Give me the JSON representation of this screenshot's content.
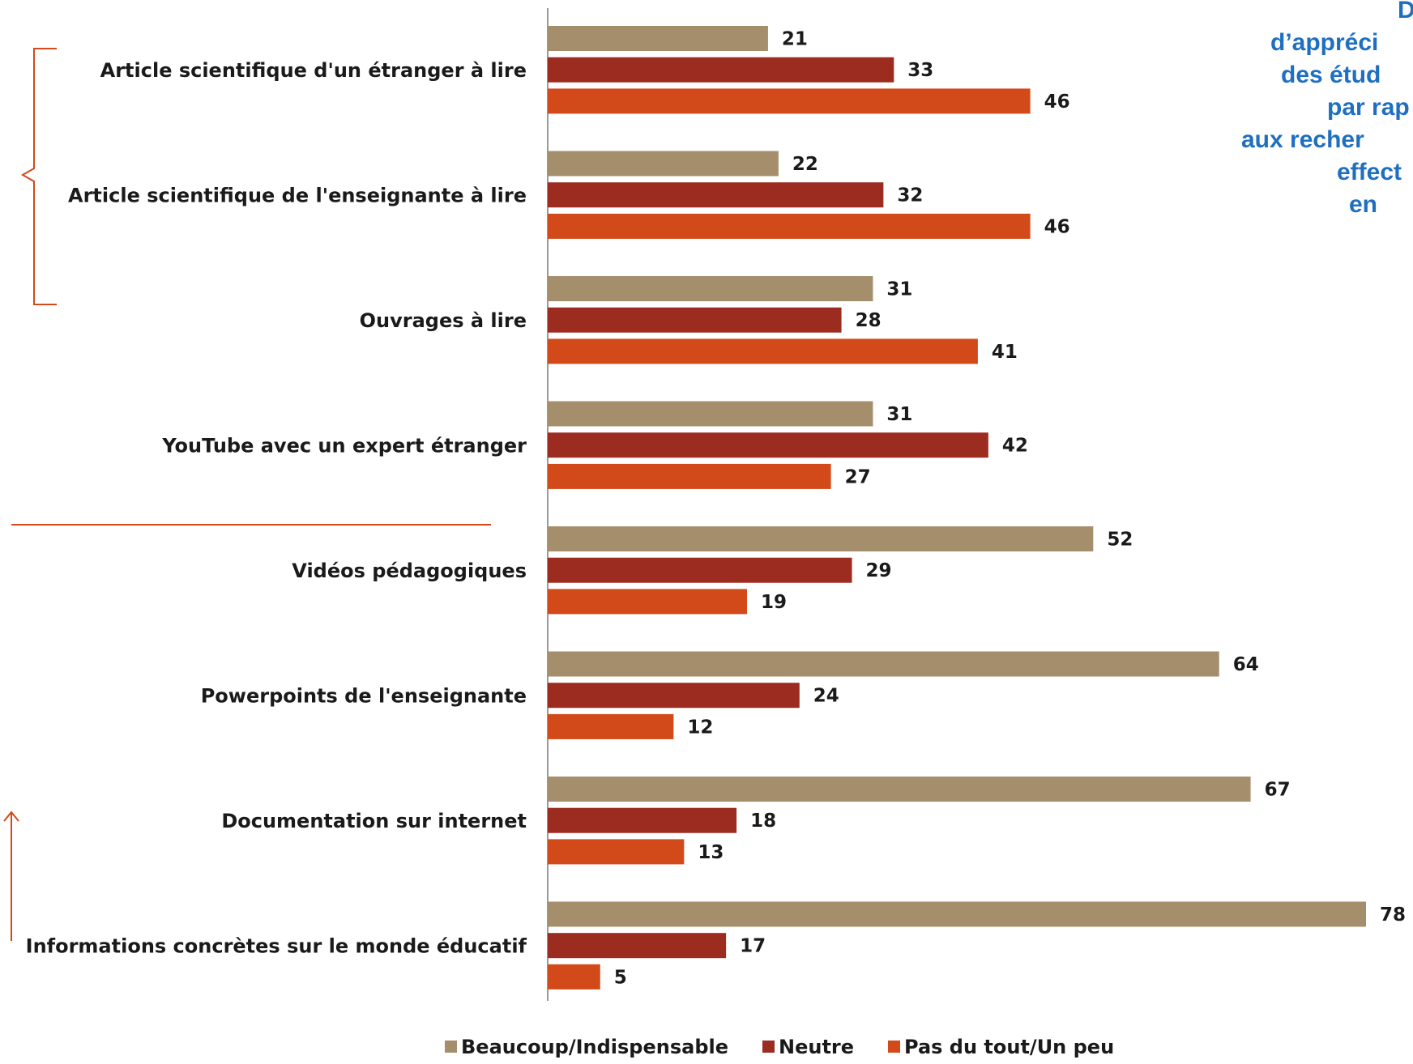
{
  "chart_data": {
    "type": "bar",
    "orientation": "horizontal",
    "categories": [
      "Article scientifique d'un étranger à lire",
      "Article scientifique de l'enseignante à lire",
      "Ouvrages à lire",
      "YouTube avec un expert étranger",
      "Vidéos pédagogiques",
      "Powerpoints de l'enseignante",
      "Documentation sur internet",
      "Informations concrètes sur le  monde éducatif"
    ],
    "series": [
      {
        "name": "Beaucoup/Indispensable",
        "color": "#A58E6C",
        "values": [
          21,
          22,
          31,
          31,
          52,
          64,
          67,
          78
        ]
      },
      {
        "name": "Neutre",
        "color": "#9C2B20",
        "values": [
          33,
          32,
          28,
          42,
          29,
          24,
          18,
          17
        ]
      },
      {
        "name": "Pas du tout/Un peu",
        "color": "#D24A1A",
        "values": [
          46,
          46,
          41,
          27,
          19,
          12,
          13,
          5
        ]
      }
    ],
    "xlim": [
      0,
      78
    ],
    "grid": false,
    "legend_position": "bottom",
    "title_lines": [
      "D",
      "d’appréci",
      "des étud",
      "par rap",
      "aux recher",
      "effect",
      "en"
    ]
  },
  "decoration_color": "#D24A1A"
}
